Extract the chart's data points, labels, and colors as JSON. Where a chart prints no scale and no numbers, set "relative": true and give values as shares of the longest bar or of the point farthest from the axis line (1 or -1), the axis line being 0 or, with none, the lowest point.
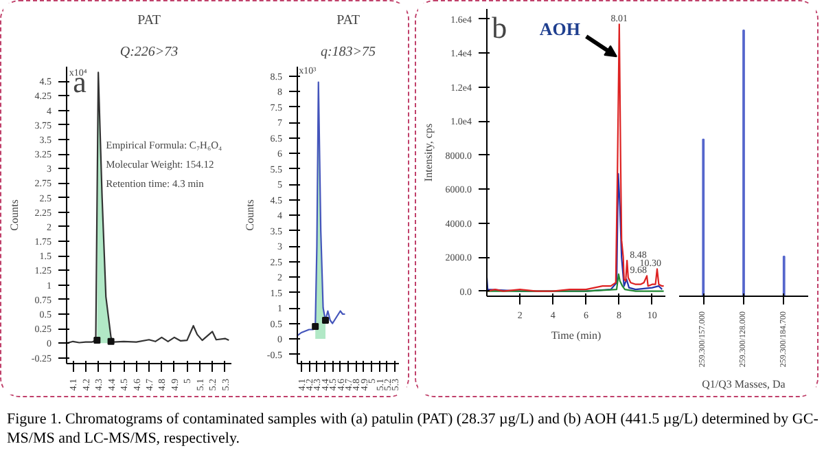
{
  "chart_data": [
    {
      "type": "line",
      "title": "PAT",
      "subtitle": "Q:226>73",
      "ylabel": "Counts",
      "grid": false,
      "xlim": [
        4.05,
        5.35
      ],
      "ylim": [
        -0.35,
        4.75
      ],
      "xticks": [
        4.1,
        4.2,
        4.3,
        4.4,
        4.5,
        4.6,
        4.7,
        4.8,
        4.9,
        5,
        5.1,
        5.2,
        5.3
      ],
      "yticks": [
        -0.25,
        0,
        0.25,
        0.5,
        0.75,
        1,
        1.25,
        1.5,
        1.75,
        2,
        2.25,
        2.5,
        2.75,
        3,
        3.25,
        3.5,
        3.75,
        4,
        4.25,
        4.5
      ],
      "annotations": [
        "a",
        "x10⁴",
        "Empirical Formula: C₇H₆O₄",
        "Molecular Weight: 154.12",
        "Retention time: 4.3 min",
        "Figure 1. Chromatograms of contaminated samples with (a) patulin (PAT) (28.37 µg/L) and (b) AOH (441.5 µg/L) determined by GC-MS/MS and LC-MS/MS, respectively."
      ],
      "series": [
        {
          "type": "area",
          "color": "#a8e6c0",
          "x": [
            4.29,
            4.3,
            4.33,
            4.36,
            4.4
          ],
          "values": [
            0.05,
            4.65,
            2.5,
            0.8,
            0.03
          ]
        },
        {
          "color": "#333333",
          "x": [
            4.05,
            4.1,
            4.15,
            4.2,
            4.25,
            4.28,
            4.3,
            4.33,
            4.36,
            4.4,
            4.42,
            4.5,
            4.6,
            4.7,
            4.75,
            4.8,
            4.85,
            4.9,
            4.95,
            5.0,
            5.05,
            5.08,
            5.12,
            5.2,
            5.23,
            5.3,
            5.33
          ],
          "values": [
            0,
            0.03,
            0.01,
            0.02,
            0.02,
            0.05,
            4.65,
            2.5,
            0.8,
            0.1,
            0.02,
            0.03,
            0.02,
            0.06,
            0.03,
            0.1,
            0.03,
            0.1,
            0.04,
            0.05,
            0.3,
            0.15,
            0.05,
            0.2,
            0.06,
            0.08,
            0.05
          ]
        },
        {
          "type": "scatter",
          "marker": "square",
          "color": "#111111",
          "x": [
            4.29,
            4.4
          ],
          "values": [
            0.05,
            0.03
          ]
        }
      ]
    },
    {
      "type": "line",
      "title": "PAT",
      "subtitle": "q:183>75",
      "ylabel": "Counts",
      "grid": false,
      "xlim": [
        4.05,
        5.35
      ],
      "ylim": [
        -0.8,
        8.8
      ],
      "xticks": [
        4.1,
        4.2,
        4.3,
        4.4,
        4.5,
        4.6,
        4.7,
        4.8,
        4.9,
        5,
        5.1,
        5.2,
        5.3
      ],
      "yticks": [
        -0.5,
        0,
        0.5,
        1,
        1.5,
        2,
        2.5,
        3,
        3.5,
        4,
        4.5,
        5,
        5.5,
        6,
        6.5,
        7,
        7.5,
        8,
        8.5
      ],
      "annotations": [
        "x10³"
      ],
      "series": [
        {
          "type": "area",
          "color": "#a8e6c0",
          "x": [
            4.28,
            4.3,
            4.32,
            4.35,
            4.38,
            4.41
          ],
          "values": [
            0.4,
            3,
            8.3,
            3.5,
            1.0,
            0.6
          ]
        },
        {
          "color": "#4455bb",
          "x": [
            4.05,
            4.1,
            4.15,
            4.2,
            4.25,
            4.28,
            4.3,
            4.32,
            4.35,
            4.38,
            4.41,
            4.44,
            4.47,
            4.5,
            4.55,
            4.6,
            4.63,
            4.66
          ],
          "values": [
            0.1,
            0.2,
            0.25,
            0.3,
            0.3,
            0.4,
            3,
            8.3,
            3.5,
            1.0,
            0.6,
            0.9,
            0.6,
            0.5,
            0.7,
            0.9,
            0.8,
            0.8
          ]
        },
        {
          "type": "scatter",
          "marker": "square",
          "color": "#111111",
          "x": [
            4.28,
            4.41
          ],
          "values": [
            0.4,
            0.6
          ]
        }
      ]
    },
    {
      "type": "line",
      "xlabel": "Time (min)",
      "ylabel": "Intensity, cps",
      "grid": false,
      "xlim": [
        0,
        10.8
      ],
      "ylim": [
        -300,
        16600
      ],
      "xticks": [
        2,
        4,
        6,
        8,
        10
      ],
      "yticks": [
        {
          "value": 0,
          "label": "0.0"
        },
        {
          "value": 2000,
          "label": "2000.0"
        },
        {
          "value": 4000,
          "label": "4000.0"
        },
        {
          "value": 6000,
          "label": "6000.0"
        },
        {
          "value": 8000,
          "label": "8000.0"
        },
        {
          "value": 10000,
          "label": "1.0e4"
        },
        {
          "value": 12000,
          "label": "1.2e4"
        },
        {
          "value": 14000,
          "label": "1.4e4"
        },
        {
          "value": 16000,
          "label": "1.6e4"
        }
      ],
      "annotations": [
        "b",
        {
          "text": "AOH",
          "x": 7.85,
          "y": 13800
        },
        {
          "text": "8.01",
          "x": 8.01,
          "y": 15700
        },
        {
          "text": "8.48",
          "x": 8.48,
          "y": 1800
        },
        {
          "text": "9.68",
          "x": 9.68,
          "y": 900
        },
        {
          "text": "10.30",
          "x": 10.3,
          "y": 1300
        }
      ],
      "series": [
        {
          "color": "#2233aa",
          "x": [
            0,
            0.05,
            2,
            6,
            7.5,
            7.85,
            7.95,
            8.05,
            8.15,
            8.3,
            8.45,
            8.6,
            9,
            10,
            10.4,
            10.6
          ],
          "values": [
            800,
            100,
            0,
            0,
            100,
            500,
            6900,
            5000,
            2000,
            300,
            700,
            200,
            100,
            200,
            300,
            100
          ]
        },
        {
          "color": "#228833",
          "x": [
            0,
            6,
            7.85,
            7.97,
            8.05,
            8.2,
            8.35,
            9,
            10.7
          ],
          "values": [
            0,
            0,
            100,
            1000,
            600,
            300,
            100,
            0,
            0
          ]
        },
        {
          "color": "#dd2222",
          "x": [
            0,
            0.5,
            1,
            2,
            3,
            4,
            5,
            6,
            6.5,
            7,
            7.5,
            7.8,
            7.9,
            8.01,
            8.1,
            8.15,
            8.25,
            8.3,
            8.4,
            8.48,
            8.55,
            8.7,
            9,
            9.3,
            9.5,
            9.68,
            9.75,
            10,
            10.2,
            10.3,
            10.4,
            10.6,
            10.7
          ],
          "values": [
            0,
            100,
            0,
            100,
            0,
            0,
            100,
            100,
            200,
            300,
            300,
            500,
            7000,
            15700,
            7000,
            3000,
            2000,
            700,
            600,
            1800,
            800,
            500,
            400,
            400,
            500,
            900,
            300,
            400,
            400,
            1300,
            400,
            300,
            300
          ]
        }
      ]
    },
    {
      "type": "bar",
      "relative": true,
      "xlabel": "Q1/Q3 Masses, Da",
      "categories": [
        "259.300/157.000",
        "259.300/128.000",
        "259.300/184.700"
      ],
      "values": [
        0.59,
        1,
        0.15
      ],
      "color": "#5566cc"
    }
  ]
}
